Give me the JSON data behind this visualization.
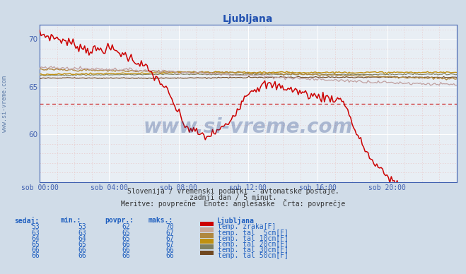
{
  "title": "Ljubljana",
  "bg_color": "#d0dce8",
  "plot_bg_color": "#e8eef4",
  "grid_major_color": "#ffffff",
  "grid_minor_color": "#e8c8c8",
  "axis_color": "#4060b0",
  "title_color": "#2050b0",
  "x_ticks": [
    "sob 00:00",
    "sob 04:00",
    "sob 08:00",
    "sob 12:00",
    "sob 16:00",
    "sob 20:00"
  ],
  "y_min": 55,
  "y_max": 71.5,
  "y_ticks": [
    60,
    65,
    70
  ],
  "subtitle1": "Slovenija / vremenski podatki - avtomatske postaje.",
  "subtitle2": "zadnji dan / 5 minut.",
  "subtitle3": "Meritve: povprečne  Enote: anglešaške  Črta: povprečje",
  "watermark": "www.si-vreme.com",
  "series_colors": [
    "#cc0000",
    "#c0a0a0",
    "#b08840",
    "#c09010",
    "#808060",
    "#704820"
  ],
  "legend_colors": [
    "#cc0000",
    "#c8a898",
    "#b08840",
    "#c09010",
    "#808060",
    "#704820"
  ],
  "series_labels": [
    "temp. zraka[F]",
    "temp. tal  5cm[F]",
    "temp. tal 10cm[F]",
    "temp. tal 20cm[F]",
    "temp. tal 30cm[F]",
    "temp. tal 50cm[F]"
  ],
  "table_headers": [
    "sedaj:",
    "min.:",
    "povpr.:",
    "maks.:"
  ],
  "table_data": [
    [
      53,
      53,
      62,
      70
    ],
    [
      63,
      63,
      65,
      67
    ],
    [
      64,
      64,
      65,
      67
    ],
    [
      65,
      65,
      66,
      67
    ],
    [
      66,
      66,
      66,
      66
    ],
    [
      66,
      66,
      66,
      66
    ]
  ],
  "dashed_line_y": 63.2,
  "n_points": 288,
  "left_label": "www.si-vreme.com"
}
